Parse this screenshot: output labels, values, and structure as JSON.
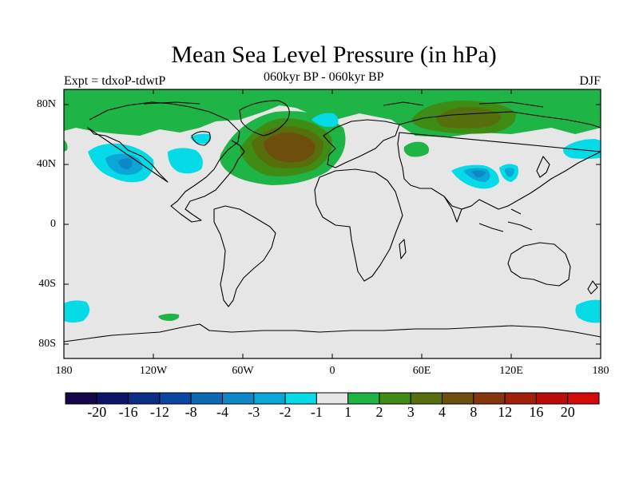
{
  "header": {
    "title": "Mean Sea Level Pressure (in hPa)",
    "experiment": "Expt = tdxoP-tdwtP",
    "subtitle": "060kyr BP - 060kyr BP",
    "season": "DJF"
  },
  "axes": {
    "lat_ticks": [
      "80N",
      "40N",
      "0",
      "40S",
      "80S"
    ],
    "lon_ticks": [
      "180",
      "120W",
      "60W",
      "0",
      "60E",
      "120E",
      "180"
    ]
  },
  "colorbar": {
    "labels": [
      "-20",
      "-16",
      "-12",
      "-8",
      "-4",
      "-3",
      "-2",
      "-1",
      "1",
      "2",
      "3",
      "4",
      "8",
      "12",
      "16",
      "20"
    ],
    "colors": [
      "#16064a",
      "#0c1468",
      "#0b2d86",
      "#0b46a0",
      "#0a6ab4",
      "#0c88c6",
      "#0aa6d8",
      "#05dbe6",
      "#e6e6e6",
      "#1eb446",
      "#3f8c14",
      "#566e0c",
      "#6e4e0c",
      "#86360c",
      "#a0200c",
      "#bb0c0c",
      "#d40a0a"
    ]
  },
  "map_colors": {
    "background": "#e6e6e6",
    "positive_1_2": "#1eb446",
    "positive_2_3": "#3f8c14",
    "positive_3_4": "#566e0c",
    "positive_4_8": "#6e4e0c",
    "negative_1_2": "#05dbe6",
    "negative_2_3": "#0aa6d8",
    "negative_3_4": "#0c88c6"
  }
}
